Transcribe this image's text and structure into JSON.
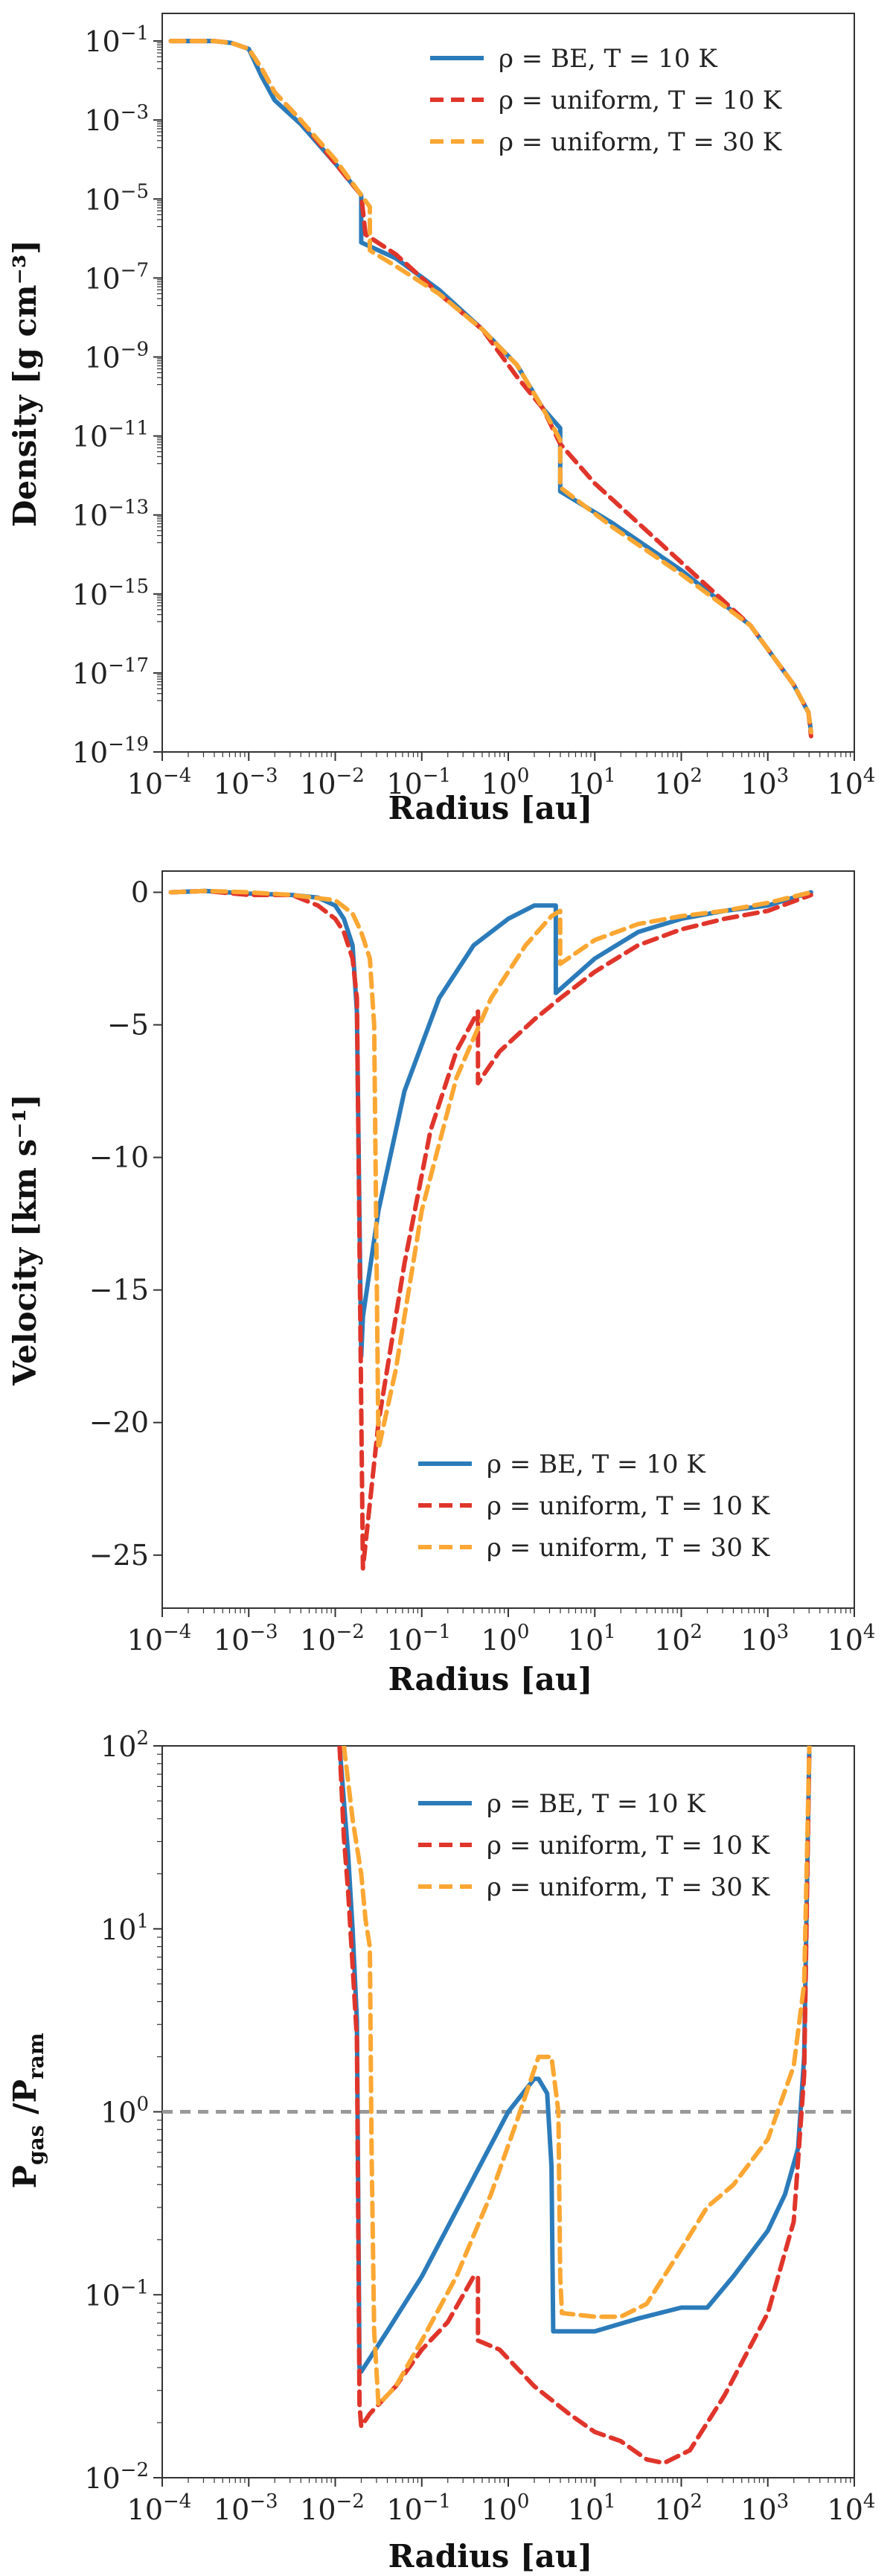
{
  "colors": {
    "be": "#2b7bba",
    "uniform10": "#e0352b",
    "uniform30": "#fba733",
    "ref": "#999999"
  },
  "legend": [
    {
      "label": "ρ = BE, T = 10 K",
      "series": "be",
      "dash": "solid"
    },
    {
      "label": "ρ = uniform, T = 10 K",
      "series": "uniform10",
      "dash": "dashed"
    },
    {
      "label": "ρ = uniform, T = 30 K",
      "series": "uniform30",
      "dash": "dashed"
    }
  ],
  "chart_data": [
    {
      "type": "line",
      "name": "density",
      "xlabel": "Radius [au]",
      "ylabel": "Density [g cm⁻³]",
      "xscale": "log",
      "yscale": "log",
      "xlim": [
        0.0001,
        10000
      ],
      "ylim": [
        1e-19,
        0.5
      ],
      "xticks": [
        -4,
        -3,
        -2,
        -1,
        0,
        1,
        2,
        3,
        4
      ],
      "yticks": [
        -1,
        -3,
        -5,
        -7,
        -9,
        -11,
        -13,
        -15,
        -17,
        -19
      ],
      "legend_position": "top-right",
      "series": [
        {
          "key": "be",
          "name": "ρ = BE, T = 10 K",
          "logx": [
            -3.9,
            -3.4,
            -3.2,
            -3.0,
            -2.85,
            -2.7,
            -2.4,
            -2.0,
            -1.7,
            -1.7,
            -1.3,
            -0.8,
            -0.3,
            0.1,
            0.4,
            0.6,
            0.6,
            1.2,
            2.0,
            2.8,
            3.3,
            3.47,
            3.5
          ],
          "logy": [
            -1.0,
            -1.0,
            -1.05,
            -1.2,
            -1.9,
            -2.5,
            -3.1,
            -4.1,
            -4.9,
            -6.1,
            -6.5,
            -7.3,
            -8.3,
            -9.2,
            -10.3,
            -10.8,
            -12.4,
            -13.2,
            -14.4,
            -15.8,
            -17.3,
            -18.0,
            -18.5
          ]
        },
        {
          "key": "uniform10",
          "name": "ρ = uniform, T = 10 K",
          "logx": [
            -3.9,
            -3.4,
            -3.2,
            -3.0,
            -2.85,
            -2.7,
            -2.4,
            -2.0,
            -1.7,
            -1.65,
            -1.3,
            -0.8,
            -0.3,
            0.1,
            0.4,
            0.6,
            1.0,
            2.0,
            2.8,
            3.3,
            3.47,
            3.5
          ],
          "logy": [
            -1.0,
            -1.0,
            -1.05,
            -1.2,
            -1.7,
            -2.3,
            -3.0,
            -4.1,
            -4.9,
            -5.9,
            -6.4,
            -7.4,
            -8.3,
            -9.5,
            -10.3,
            -11.2,
            -12.2,
            -14.2,
            -15.8,
            -17.3,
            -18.0,
            -18.6
          ]
        },
        {
          "key": "uniform30",
          "name": "ρ = uniform, T = 30 K",
          "logx": [
            -3.9,
            -3.4,
            -3.2,
            -3.0,
            -2.85,
            -2.7,
            -2.4,
            -2.0,
            -1.7,
            -1.6,
            -1.6,
            -1.3,
            -0.8,
            -0.3,
            0.1,
            0.4,
            0.6,
            0.6,
            1.2,
            2.0,
            2.8,
            3.3,
            3.47,
            3.5
          ],
          "logy": [
            -1.0,
            -1.0,
            -1.05,
            -1.2,
            -1.7,
            -2.3,
            -3.0,
            -4.0,
            -4.9,
            -5.2,
            -6.3,
            -6.7,
            -7.4,
            -8.3,
            -9.2,
            -10.3,
            -11.1,
            -12.3,
            -13.3,
            -14.5,
            -15.8,
            -17.3,
            -18.0,
            -18.5
          ]
        }
      ]
    },
    {
      "type": "line",
      "name": "velocity",
      "xlabel": "Radius [au]",
      "ylabel": "Velocity [km s⁻¹]",
      "xscale": "log",
      "yscale": "linear",
      "xlim": [
        0.0001,
        10000
      ],
      "ylim": [
        -27,
        0.8
      ],
      "xticks": [
        -4,
        -3,
        -2,
        -1,
        0,
        1,
        2,
        3,
        4
      ],
      "yticks": [
        0,
        -5,
        -10,
        -15,
        -20,
        -25
      ],
      "legend_position": "bottom-right",
      "series": [
        {
          "key": "be",
          "name": "ρ = BE, T = 10 K",
          "logx": [
            -3.9,
            -3.5,
            -3.0,
            -2.5,
            -2.2,
            -2.0,
            -1.9,
            -1.8,
            -1.75,
            -1.7,
            -1.68,
            -1.5,
            -1.2,
            -0.8,
            -0.4,
            0.0,
            0.3,
            0.5,
            0.55,
            0.55,
            1.0,
            1.5,
            2.0,
            2.5,
            3.0,
            3.5
          ],
          "y": [
            0.0,
            0.05,
            -0.05,
            -0.1,
            -0.2,
            -0.5,
            -1.0,
            -2.0,
            -4.5,
            -17.5,
            -16.0,
            -12.0,
            -7.5,
            -4.0,
            -2.0,
            -1.0,
            -0.5,
            -0.5,
            -0.5,
            -3.8,
            -2.5,
            -1.5,
            -1.0,
            -0.7,
            -0.5,
            0.0
          ]
        },
        {
          "key": "uniform10",
          "name": "ρ = uniform, T = 10 K",
          "logx": [
            -3.9,
            -3.5,
            -3.0,
            -2.5,
            -2.2,
            -2.0,
            -1.9,
            -1.8,
            -1.75,
            -1.68,
            -1.5,
            -1.2,
            -0.9,
            -0.6,
            -0.35,
            -0.35,
            -0.1,
            0.3,
            0.6,
            1.0,
            1.5,
            2.0,
            2.5,
            3.0,
            3.5
          ],
          "y": [
            0.0,
            0.05,
            -0.1,
            -0.1,
            -0.5,
            -1.0,
            -1.5,
            -2.5,
            -4.0,
            -25.5,
            -20.0,
            -14.0,
            -9.0,
            -6.0,
            -4.5,
            -7.2,
            -6.0,
            -4.8,
            -4.0,
            -3.0,
            -2.0,
            -1.4,
            -1.0,
            -0.7,
            -0.1
          ]
        },
        {
          "key": "uniform30",
          "name": "ρ = uniform, T = 30 K",
          "logx": [
            -3.9,
            -3.5,
            -3.0,
            -2.5,
            -2.0,
            -1.8,
            -1.7,
            -1.6,
            -1.55,
            -1.5,
            -1.3,
            -1.0,
            -0.6,
            -0.2,
            0.2,
            0.5,
            0.6,
            0.6,
            1.0,
            1.5,
            2.0,
            2.5,
            3.0,
            3.5
          ],
          "y": [
            0.0,
            0.05,
            0.0,
            -0.1,
            -0.3,
            -0.8,
            -1.5,
            -2.5,
            -5.0,
            -21.0,
            -18.0,
            -12.0,
            -7.0,
            -4.0,
            -2.0,
            -0.9,
            -0.7,
            -2.7,
            -1.8,
            -1.2,
            -0.9,
            -0.7,
            -0.4,
            0.0
          ]
        }
      ]
    },
    {
      "type": "line",
      "name": "pressure-ratio",
      "xlabel": "Radius [au]",
      "ylabel": "P_gas / P_ram",
      "ylabel_main": "P",
      "ylabel_sub1": "gas",
      "ylabel_mid": " /P",
      "ylabel_sub2": "ram",
      "xscale": "log",
      "yscale": "log",
      "xlim": [
        0.0001,
        10000
      ],
      "ylim": [
        0.01,
        100
      ],
      "xticks": [
        -4,
        -3,
        -2,
        -1,
        0,
        1,
        2,
        3,
        4
      ],
      "yticks": [
        2,
        1,
        0,
        -1,
        -2
      ],
      "reference_line": {
        "y": 1.0,
        "style": "dashed"
      },
      "legend_position": "top-right",
      "series": [
        {
          "key": "be",
          "name": "ρ = BE, T = 10 K",
          "logx": [
            -1.95,
            -1.9,
            -1.85,
            -1.8,
            -1.75,
            -1.72,
            -1.7,
            -1.4,
            -1.0,
            -0.5,
            0.0,
            0.3,
            0.35,
            0.45,
            0.5,
            0.52,
            0.7,
            1.0,
            1.5,
            2.0,
            2.3,
            2.6,
            3.0,
            3.2,
            3.35,
            3.42,
            3.48
          ],
          "logy": [
            2.0,
            1.7,
            1.4,
            1.0,
            0.5,
            -1.4,
            -1.42,
            -1.2,
            -0.9,
            -0.45,
            0.0,
            0.18,
            0.18,
            0.1,
            -0.3,
            -1.2,
            -1.2,
            -1.2,
            -1.13,
            -1.07,
            -1.07,
            -0.9,
            -0.65,
            -0.45,
            -0.2,
            0.3,
            2.0
          ]
        },
        {
          "key": "uniform10",
          "name": "ρ = uniform, T = 10 K",
          "logx": [
            -1.95,
            -1.9,
            -1.85,
            -1.8,
            -1.75,
            -1.72,
            -1.7,
            -1.6,
            -1.3,
            -1.0,
            -0.7,
            -0.4,
            -0.35,
            -0.35,
            -0.1,
            0.3,
            0.7,
            1.0,
            1.3,
            1.6,
            1.8,
            2.1,
            2.5,
            3.0,
            3.3,
            3.42,
            3.48
          ],
          "logy": [
            2.0,
            1.5,
            1.2,
            0.8,
            0.4,
            -1.6,
            -1.72,
            -1.65,
            -1.5,
            -1.3,
            -1.15,
            -0.9,
            -0.9,
            -1.25,
            -1.3,
            -1.5,
            -1.65,
            -1.75,
            -1.8,
            -1.9,
            -1.92,
            -1.85,
            -1.55,
            -1.1,
            -0.6,
            0.2,
            2.0
          ]
        },
        {
          "key": "uniform30",
          "name": "ρ = uniform, T = 30 K",
          "logx": [
            -1.9,
            -1.8,
            -1.7,
            -1.65,
            -1.6,
            -1.58,
            -1.55,
            -1.5,
            -1.3,
            -1.0,
            -0.6,
            -0.2,
            0.1,
            0.35,
            0.5,
            0.58,
            0.6,
            0.62,
            1.0,
            1.3,
            1.6,
            2.0,
            2.3,
            2.6,
            3.0,
            3.3,
            3.42,
            3.48
          ],
          "logy": [
            2.0,
            1.6,
            1.3,
            1.05,
            0.9,
            -0.2,
            -1.2,
            -1.6,
            -1.5,
            -1.25,
            -0.9,
            -0.45,
            -0.05,
            0.3,
            0.3,
            0.0,
            -0.9,
            -1.1,
            -1.12,
            -1.12,
            -1.05,
            -0.75,
            -0.52,
            -0.4,
            -0.15,
            0.25,
            0.7,
            2.0
          ]
        }
      ]
    }
  ]
}
